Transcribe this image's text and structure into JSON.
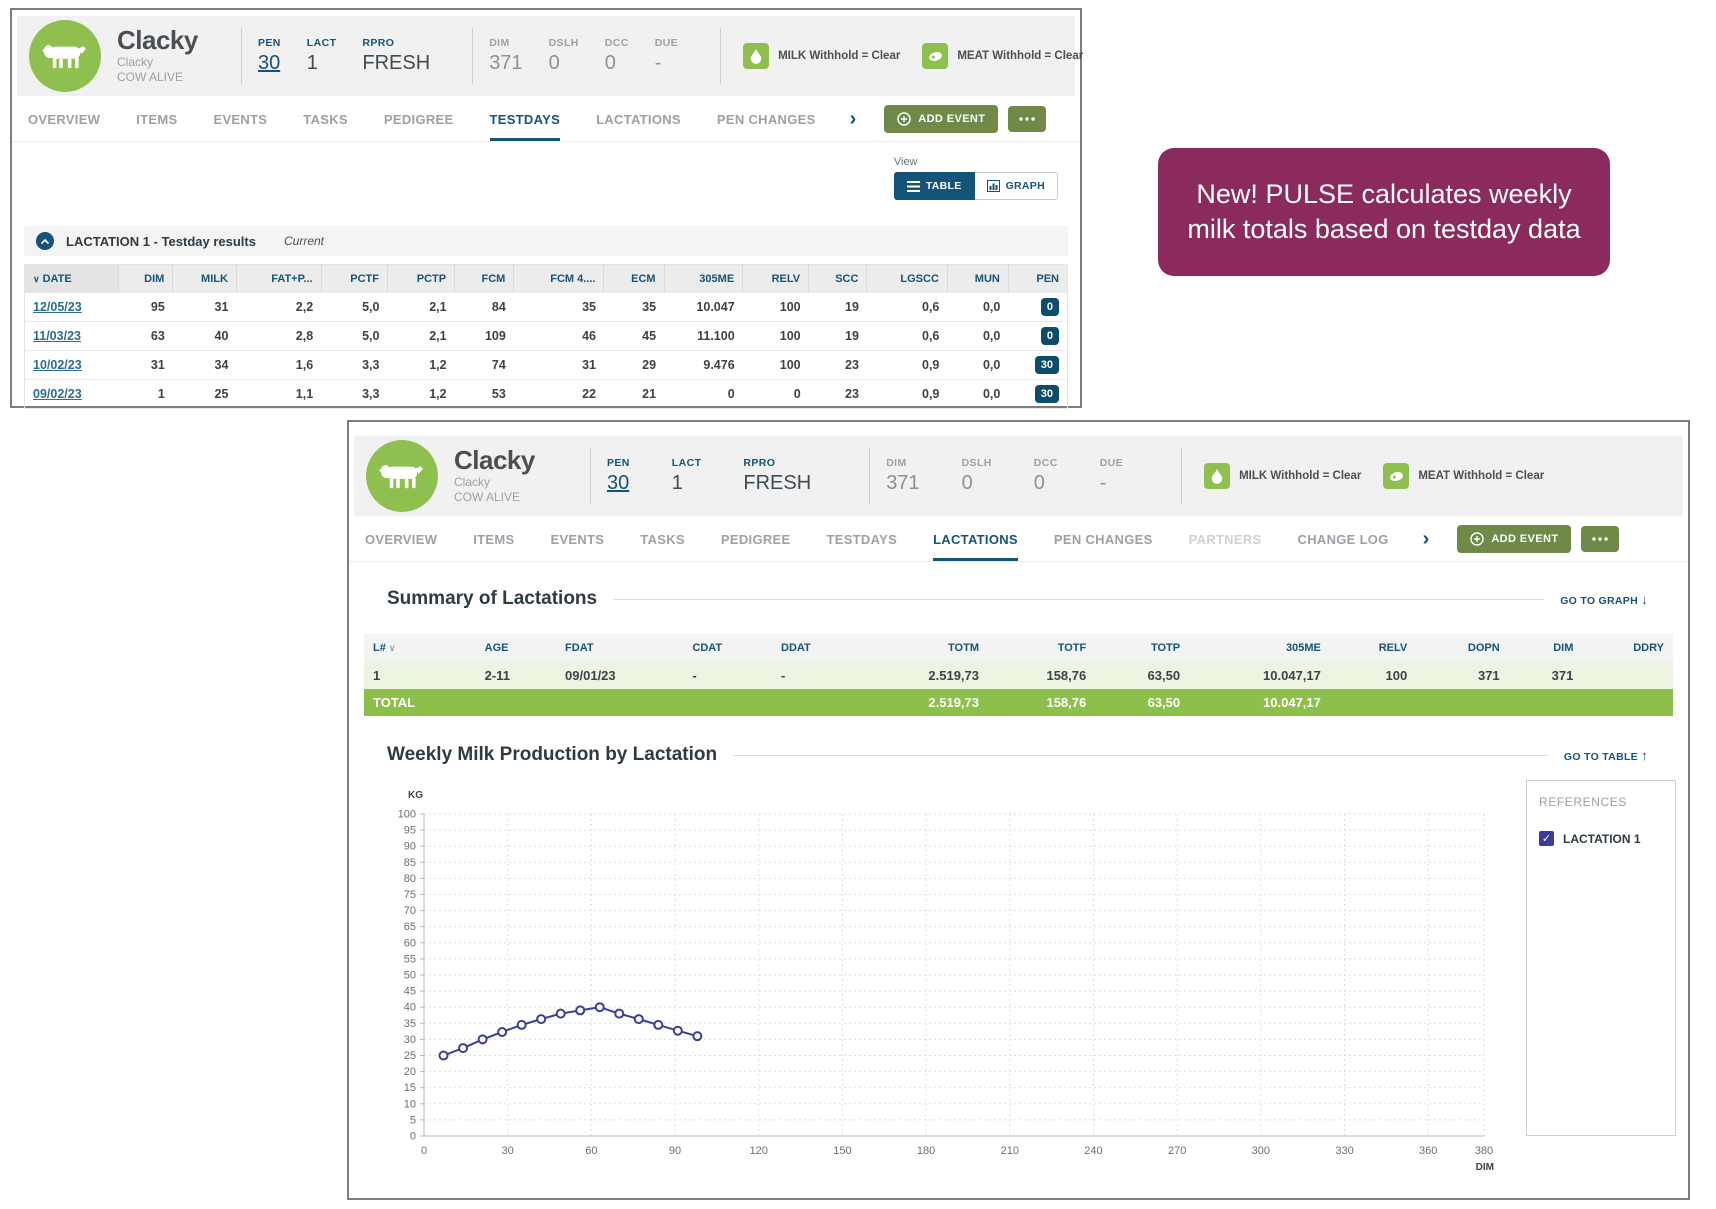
{
  "colors": {
    "navy": "#155379",
    "avatar_green": "#8fc04f",
    "olive_button": "#6f8949",
    "total_row_green": "#8dc04b",
    "indigo_line": "#3c3c9b",
    "callout_bg": "#8b2a5c",
    "pen_badge": "#0e4c6b"
  },
  "labels": {
    "view": "View",
    "table_btn": "TABLE",
    "graph_btn": "GRAPH",
    "add_event": "ADD EVENT",
    "go_to_graph": "GO TO GRAPH",
    "go_to_table": "GO TO TABLE",
    "total": "TOTAL"
  },
  "cow": {
    "name": "Clacky",
    "alt_name": "Clacky",
    "status": "COW ALIVE",
    "stats_primary": [
      {
        "label": "PEN",
        "value": "30",
        "link": true
      },
      {
        "label": "LACT",
        "value": "1"
      },
      {
        "label": "RPRO",
        "value": "FRESH"
      }
    ],
    "stats_secondary": [
      {
        "label": "DIM",
        "value": "371"
      },
      {
        "label": "DSLH",
        "value": "0"
      },
      {
        "label": "DCC",
        "value": "0"
      },
      {
        "label": "DUE",
        "value": "-"
      }
    ],
    "withholds": [
      {
        "icon": "milk-drop-icon",
        "text": "MILK Withhold = Clear"
      },
      {
        "icon": "meat-icon",
        "text": "MEAT Withhold = Clear"
      }
    ]
  },
  "testdays_window": {
    "tabs": [
      "OVERVIEW",
      "ITEMS",
      "EVENTS",
      "TASKS",
      "PEDIGREE",
      "TESTDAYS",
      "LACTATIONS",
      "PEN CHANGES"
    ],
    "active_tab": "TESTDAYS",
    "section_title": "LACTATION 1 - Testday results",
    "section_status": "Current",
    "table": {
      "columns": [
        "DATE",
        "DIM",
        "MILK",
        "FAT+P...",
        "PCTF",
        "PCTP",
        "FCM",
        "FCM 4....",
        "ECM",
        "305ME",
        "RELV",
        "SCC",
        "LGSCC",
        "MUN",
        "PEN"
      ],
      "rows": [
        [
          "12/05/23",
          "95",
          "31",
          "2,2",
          "5,0",
          "2,1",
          "84",
          "35",
          "35",
          "10.047",
          "100",
          "19",
          "0,6",
          "0,0",
          "0"
        ],
        [
          "11/03/23",
          "63",
          "40",
          "2,8",
          "5,0",
          "2,1",
          "109",
          "46",
          "45",
          "11.100",
          "100",
          "19",
          "0,6",
          "0,0",
          "0"
        ],
        [
          "10/02/23",
          "31",
          "34",
          "1,6",
          "3,3",
          "1,2",
          "74",
          "31",
          "29",
          "9.476",
          "100",
          "23",
          "0,9",
          "0,0",
          "30"
        ],
        [
          "09/02/23",
          "1",
          "25",
          "1,1",
          "3,3",
          "1,2",
          "53",
          "22",
          "21",
          "0",
          "0",
          "23",
          "0,9",
          "0,0",
          "30"
        ]
      ]
    }
  },
  "lactations_window": {
    "tabs": [
      "OVERVIEW",
      "ITEMS",
      "EVENTS",
      "TASKS",
      "PEDIGREE",
      "TESTDAYS",
      "LACTATIONS",
      "PEN CHANGES",
      "PARTNERS",
      "CHANGE LOG"
    ],
    "active_tab": "LACTATIONS",
    "disabled_tabs": [
      "PARTNERS"
    ],
    "summary_heading": "Summary of Lactations",
    "weekly_heading": "Weekly Milk Production by Lactation",
    "summary_table": {
      "columns": [
        "L#",
        "AGE",
        "FDAT",
        "CDAT",
        "DDAT",
        "TOTM",
        "TOTF",
        "TOTP",
        "305ME",
        "RELV",
        "DOPN",
        "DIM",
        "DDRY"
      ],
      "rows": [
        [
          "1",
          "2-11",
          "09/01/23",
          "-",
          "-",
          "2.519,73",
          "158,76",
          "63,50",
          "10.047,17",
          "100",
          "371",
          "371",
          ""
        ]
      ],
      "total_row": [
        "TOTAL",
        "",
        "",
        "",
        "",
        "2.519,73",
        "158,76",
        "63,50",
        "10.047,17",
        "",
        "",
        "",
        ""
      ]
    },
    "references": {
      "title": "REFERENCES",
      "items": [
        {
          "label": "LACTATION 1",
          "checked": true
        }
      ]
    }
  },
  "callout": {
    "text": "New! PULSE calculates weekly milk totals based on testday data"
  },
  "chart_data": {
    "type": "line",
    "title": "Weekly Milk Production by Lactation",
    "xlabel": "DIM",
    "ylabel": "KG",
    "xlim": [
      0,
      380
    ],
    "ylim": [
      0,
      100
    ],
    "x_ticks": [
      0,
      30,
      60,
      90,
      120,
      150,
      180,
      210,
      240,
      270,
      300,
      330,
      360,
      380
    ],
    "y_tick_step": 5,
    "grid": true,
    "legend": [
      "LACTATION 1"
    ],
    "legend_position": "right",
    "series": [
      {
        "name": "LACTATION 1",
        "color": "#3c3c9b",
        "x": [
          7,
          14,
          21,
          28,
          35,
          42,
          49,
          56,
          63,
          70,
          77,
          84,
          91,
          98
        ],
        "y": [
          25,
          27.3,
          30,
          32.3,
          34.5,
          36.3,
          38,
          39,
          40,
          38,
          36.3,
          34.5,
          32.7,
          31
        ]
      }
    ]
  }
}
